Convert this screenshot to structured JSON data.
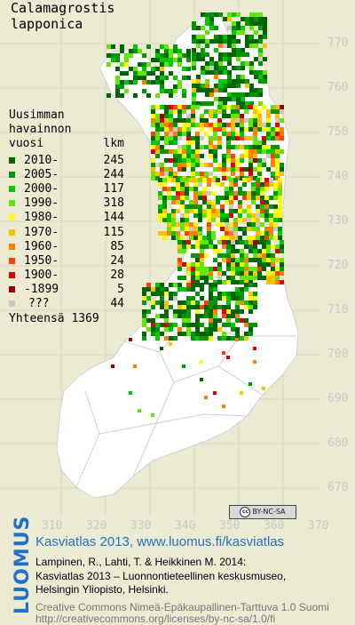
{
  "species": {
    "line1": "Calamagrostis",
    "line2": "lapponica"
  },
  "legend": {
    "heading": [
      "Uusimman",
      "havainnon"
    ],
    "column_labels": {
      "year": "vuosi",
      "count": "lkm"
    },
    "entries": [
      {
        "label": "2010-",
        "count": "245",
        "color": "#006400"
      },
      {
        "label": "2005-",
        "count": "244",
        "color": "#009600"
      },
      {
        "label": "2000-",
        "count": "117",
        "color": "#00c800"
      },
      {
        "label": "1990-",
        "count": "318",
        "color": "#64e600"
      },
      {
        "label": "1980-",
        "count": "144",
        "color": "#ffff00"
      },
      {
        "label": "1970-",
        "count": "115",
        "color": "#ffc000"
      },
      {
        "label": "1960-",
        "count": "85",
        "color": "#ff8000"
      },
      {
        "label": "1950-",
        "count": "24",
        "color": "#ff4000"
      },
      {
        "label": "1900-",
        "count": "28",
        "color": "#dc0000"
      },
      {
        "label": "-1899",
        "count": "5",
        "color": "#960000"
      },
      {
        "label": "???",
        "count": "44",
        "color": "#c8c8c8"
      }
    ],
    "total_label": "Yhteensä",
    "total_count": "1369"
  },
  "axes": {
    "y_ticks": [
      "770",
      "760",
      "750",
      "740",
      "730",
      "720",
      "710",
      "700",
      "690",
      "680",
      "670"
    ],
    "x_ticks": [
      "310",
      "320",
      "330",
      "340",
      "350",
      "360",
      "370"
    ]
  },
  "license_badge": "BY-NC-SA",
  "brand": "LUOMUS",
  "footer": {
    "link": "Kasviatlas 2013, www.luomus.fi/kasviatlas",
    "citation_1": "Lampinen, R., Lahti, T. & Heikkinen M. 2014:",
    "citation_2": "Kasviatlas 2013 – Luonnontieteellinen keskusmuseo,",
    "citation_3": "Helsingin Yliopisto, Helsinki.",
    "license_1": "Creative Commons Nimeä-Epäkaupallinen-Tarttuva 1.0 Suomi",
    "license_2": "http://creativecommons.org/licenses/by-nc-sa/1.0/fi"
  }
}
